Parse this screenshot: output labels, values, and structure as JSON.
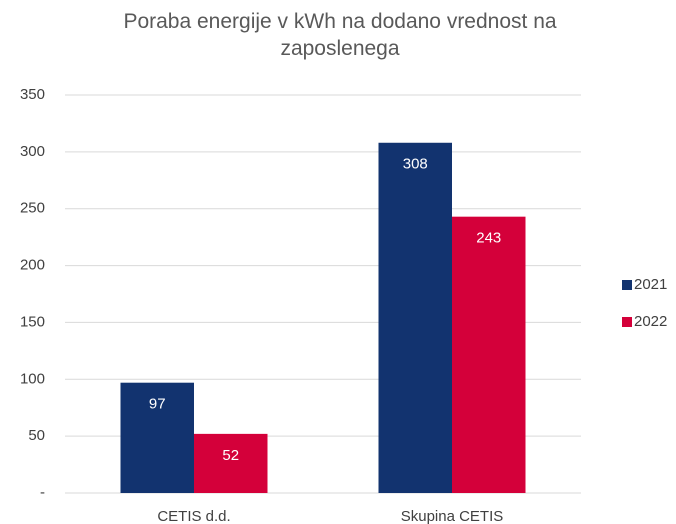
{
  "chart_data": {
    "type": "bar",
    "title": "Poraba energije v kWh na dodano vrednost na zaposlenega",
    "categories": [
      "CETIS d.d.",
      "Skupina CETIS"
    ],
    "series": [
      {
        "name": "2021",
        "color": "#12336f",
        "values": [
          97,
          308
        ]
      },
      {
        "name": "2022",
        "color": "#d4003a",
        "values": [
          52,
          243
        ]
      }
    ],
    "ylim": [
      0,
      350
    ],
    "yticks": [
      {
        "value": 0,
        "label": "-"
      },
      50,
      100,
      150,
      200,
      250,
      300,
      350
    ],
    "grid": true,
    "legend": "right"
  }
}
